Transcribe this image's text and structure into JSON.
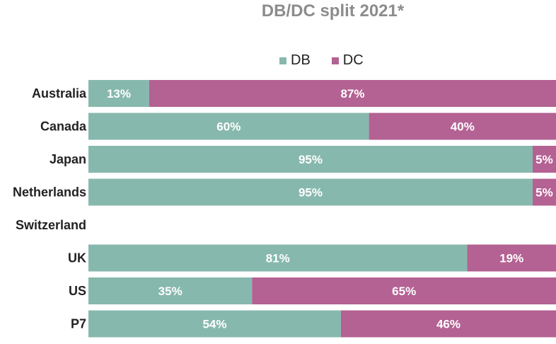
{
  "chart_data": {
    "type": "bar",
    "orientation": "horizontal",
    "stacked": true,
    "title": "DB/DC split 2021*",
    "categories": [
      "Australia",
      "Canada",
      "Japan",
      "Netherlands",
      "Switzerland",
      "UK",
      "US",
      "P7"
    ],
    "series": [
      {
        "name": "DB",
        "values": [
          13,
          60,
          95,
          95,
          null,
          81,
          35,
          54
        ],
        "labels": [
          "13%",
          "60%",
          "95%",
          "95%",
          "",
          "81%",
          "35%",
          "54%"
        ]
      },
      {
        "name": "DC",
        "values": [
          87,
          40,
          5,
          5,
          null,
          19,
          65,
          46
        ],
        "labels": [
          "87%",
          "40%",
          "5%",
          "5%",
          "",
          "19%",
          "65%",
          "46%"
        ]
      }
    ],
    "xlim": [
      0,
      100
    ],
    "legend_position": "top",
    "grid": false,
    "colors": {
      "DB": "#87b8ad",
      "DC": "#b46193"
    }
  }
}
